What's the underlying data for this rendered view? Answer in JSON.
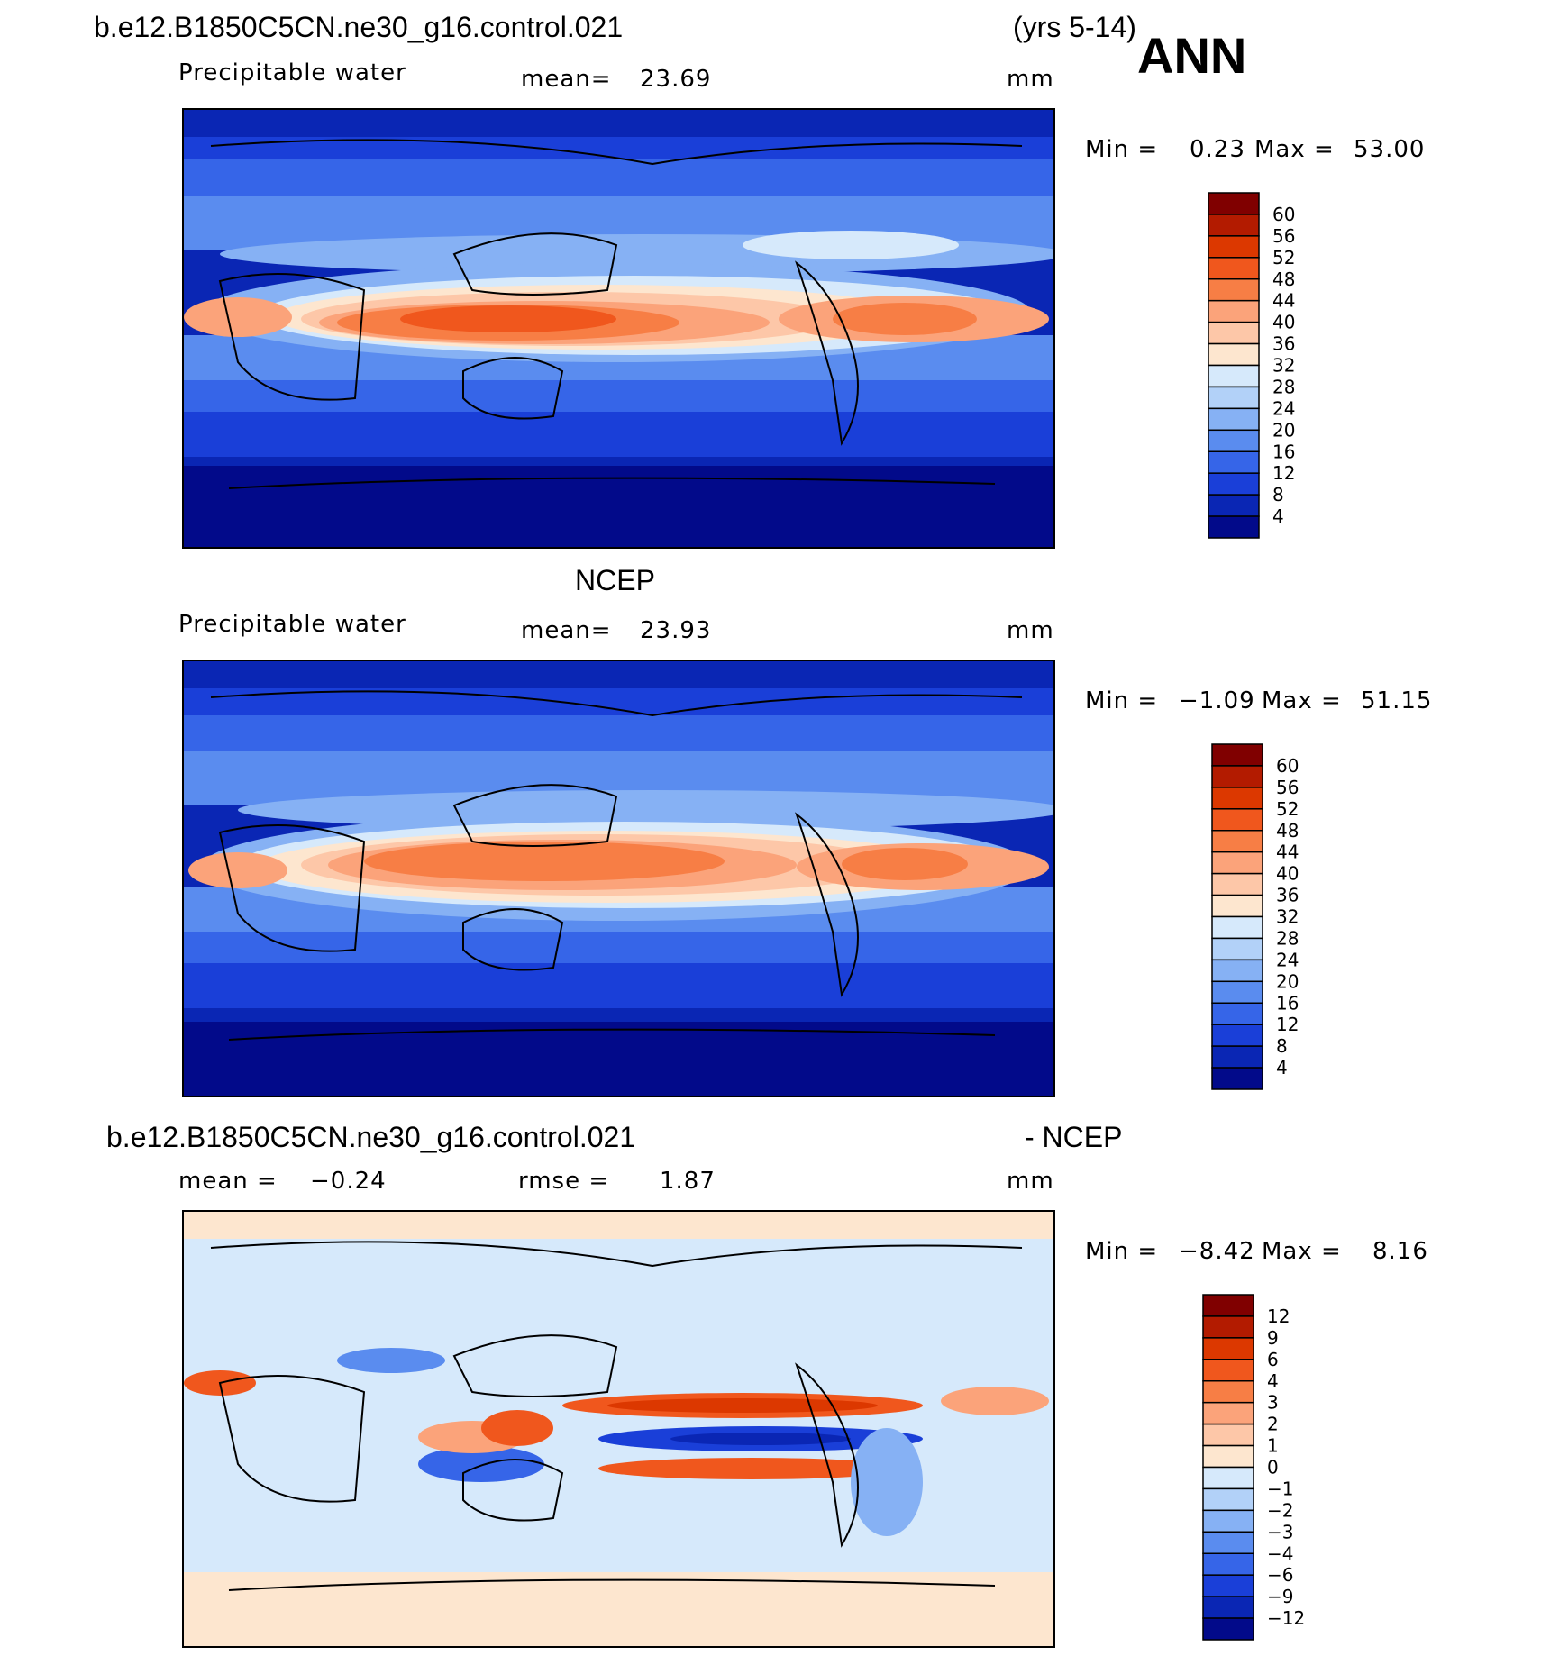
{
  "season": "ANN",
  "panels": [
    {
      "id": "p1",
      "title_left": "b.e12.B1850C5CN.ne30_g16.control.021",
      "title_right": "(yrs 5-14)",
      "variable": "Precipitable water",
      "stat1_label": "mean=",
      "stat1_value": "23.69",
      "stat2_label": "",
      "stat2_value": "",
      "units": "mm",
      "min_label": "Min =",
      "min_value": "0.23",
      "max_label": "Max =",
      "max_value": "53.00",
      "colorbar": {
        "labels": [
          "60",
          "56",
          "52",
          "48",
          "44",
          "40",
          "36",
          "32",
          "28",
          "24",
          "20",
          "16",
          "12",
          "8",
          "4"
        ],
        "colors": [
          "#800000",
          "#b31b00",
          "#dc3800",
          "#f0571d",
          "#f77e45",
          "#fba37a",
          "#fdc7a8",
          "#fde6cf",
          "#d6e9fb",
          "#b2d1f8",
          "#86b1f4",
          "#5a8cef",
          "#3665e8",
          "#1a3fd8",
          "#0a26b4",
          "#020a8a"
        ]
      }
    },
    {
      "id": "p2",
      "title_left": "",
      "title_center": "NCEP",
      "variable": "Precipitable water",
      "stat1_label": "mean=",
      "stat1_value": "23.93",
      "stat2_label": "",
      "stat2_value": "",
      "units": "mm",
      "min_label": "Min =",
      "min_value": "−1.09",
      "max_label": "Max =",
      "max_value": "51.15",
      "colorbar": {
        "labels": [
          "60",
          "56",
          "52",
          "48",
          "44",
          "40",
          "36",
          "32",
          "28",
          "24",
          "20",
          "16",
          "12",
          "8",
          "4"
        ],
        "colors": [
          "#800000",
          "#b31b00",
          "#dc3800",
          "#f0571d",
          "#f77e45",
          "#fba37a",
          "#fdc7a8",
          "#fde6cf",
          "#d6e9fb",
          "#b2d1f8",
          "#86b1f4",
          "#5a8cef",
          "#3665e8",
          "#1a3fd8",
          "#0a26b4",
          "#020a8a"
        ]
      }
    },
    {
      "id": "p3",
      "title_left": "b.e12.B1850C5CN.ne30_g16.control.021",
      "title_right": "- NCEP",
      "variable": "",
      "stat1_label": "mean =",
      "stat1_value": "−0.24",
      "stat2_label": "rmse =",
      "stat2_value": "1.87",
      "units": "mm",
      "min_label": "Min =",
      "min_value": "−8.42",
      "max_label": "Max =",
      "max_value": "8.16",
      "colorbar": {
        "labels": [
          "12",
          "9",
          "6",
          "4",
          "3",
          "2",
          "1",
          "0",
          "−1",
          "−2",
          "−3",
          "−4",
          "−6",
          "−9",
          "−12"
        ],
        "colors": [
          "#800000",
          "#b31b00",
          "#dc3800",
          "#f0571d",
          "#f77e45",
          "#fba37a",
          "#fdc7a8",
          "#fde6cf",
          "#d6e9fb",
          "#b2d1f8",
          "#86b1f4",
          "#5a8cef",
          "#3665e8",
          "#1a3fd8",
          "#0a26b4",
          "#020a8a"
        ]
      }
    }
  ]
}
